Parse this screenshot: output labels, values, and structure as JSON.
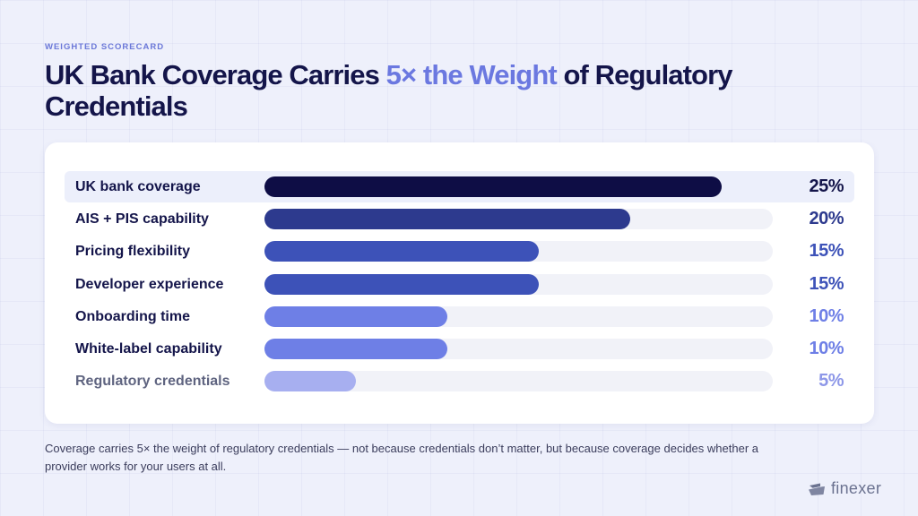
{
  "eyebrow": "WEIGHTED SCORECARD",
  "title": {
    "part1": "UK Bank Coverage Carries ",
    "highlight": "5× the Weight",
    "part2": " of Regulatory Credentials"
  },
  "footnote": "Coverage carries 5× the weight of regulatory credentials — not because credentials don’t matter, but because coverage decides whether a provider works for your users at all.",
  "logo": {
    "text": "finexer",
    "icon": "finexer-logo-icon"
  },
  "colors": {
    "title": "#14154a",
    "highlight": "#6b78e0",
    "background": "#eef0fb"
  },
  "chart_data": {
    "type": "bar",
    "orientation": "horizontal",
    "categories": [
      "UK bank coverage",
      "AIS + PIS capability",
      "Pricing flexibility",
      "Developer experience",
      "Onboarding time",
      "White-label capability",
      "Regulatory credentials"
    ],
    "values": [
      25,
      20,
      15,
      15,
      10,
      10,
      5
    ],
    "value_labels": [
      "25%",
      "20%",
      "15%",
      "15%",
      "10%",
      "10%",
      "5%"
    ],
    "bar_colors": [
      "#0e0d45",
      "#2d3a8e",
      "#3d52b8",
      "#3d52b8",
      "#6e7fe6",
      "#6e7fe6",
      "#a7aff0"
    ],
    "label_colors": [
      "#14154a",
      "#14154a",
      "#14154a",
      "#14154a",
      "#14154a",
      "#14154a",
      "#5f6480"
    ],
    "value_colors": [
      "#14154a",
      "#2d3a8e",
      "#3d52b8",
      "#3d52b8",
      "#6e7fe6",
      "#6e7fe6",
      "#8d97e8"
    ],
    "highlighted_index": 0,
    "xlim": [
      0,
      27.8
    ],
    "grid": false,
    "legend": "none"
  }
}
